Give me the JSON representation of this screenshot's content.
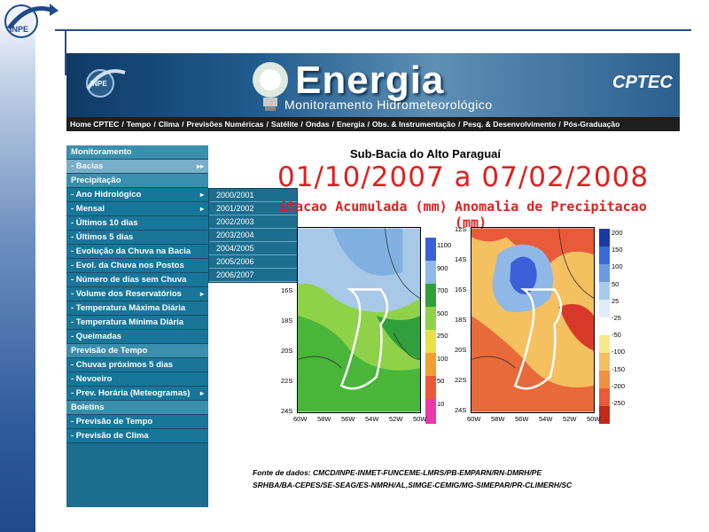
{
  "slide": {
    "logo_text": "INPE"
  },
  "banner": {
    "logo_text": "INPE",
    "title": "Energia",
    "subtitle": "Monitoramento Hidrometeorológico",
    "partner": "CPTEC"
  },
  "topnav": [
    "Home CPTEC",
    "Tempo",
    "Clima",
    "Previsões Numéricas",
    "Satélite",
    "Ondas",
    "Energia",
    "Obs. & Instrumentação",
    "Pesq. & Desenvolvimento",
    "Pós-Graduação"
  ],
  "sidebar": {
    "items": [
      {
        "label": "Monitoramento",
        "kind": "section"
      },
      {
        "label": "- Bacias",
        "kind": "active",
        "arrow": "▸▸"
      },
      {
        "label": "Precipitação",
        "kind": "section"
      },
      {
        "label": "- Ano Hidrológico",
        "kind": "sub",
        "arrow": "▸"
      },
      {
        "label": "- Mensal",
        "kind": "sub",
        "arrow": "▸"
      },
      {
        "label": "- Últimos 10 dias",
        "kind": "sub"
      },
      {
        "label": "- Últimos 5 dias",
        "kind": "sub"
      },
      {
        "label": "- Evolução da Chuva na Bacia",
        "kind": "sub"
      },
      {
        "label": "- Evol. da Chuva nos Postos",
        "kind": "sub"
      },
      {
        "label": "- Número de dias sem Chuva",
        "kind": "sub"
      },
      {
        "label": "- Volume dos Reservatórios",
        "kind": "sub",
        "arrow": "▸"
      },
      {
        "label": "- Temperatura Máxima Diária",
        "kind": "sub"
      },
      {
        "label": "- Temperatura Mínima Diária",
        "kind": "sub"
      },
      {
        "label": "- Queimadas",
        "kind": "sub"
      },
      {
        "label": "Previsão de Tempo",
        "kind": "section"
      },
      {
        "label": "- Chuvas próximos 5 dias",
        "kind": "sub"
      },
      {
        "label": "- Nevoeiro",
        "kind": "sub"
      },
      {
        "label": "- Prev. Horária (Meteogramas)",
        "kind": "sub",
        "arrow": "▸"
      },
      {
        "label": "Boletins",
        "kind": "section"
      },
      {
        "label": "- Previsão de Tempo",
        "kind": "sub"
      },
      {
        "label": "- Previsão de Clima",
        "kind": "sub"
      }
    ]
  },
  "flyout": [
    "2000/2001",
    "2001/2002",
    "2002/2003",
    "2003/2004",
    "2004/2005",
    "2005/2006",
    "2006/2007"
  ],
  "content": {
    "basin_title": "Sub-Bacia do Alto Paraguaí",
    "date_range": "01/10/2007 a 07/02/2008",
    "left_map_title": "itacao Acumulada (mm)",
    "right_map_title": "Anomalia de Precipitacao (mm)",
    "left_lat_labels": [
      "16S",
      "18S",
      "20S",
      "22S",
      "24S"
    ],
    "right_lat_labels": [
      "12S",
      "14S",
      "16S",
      "18S",
      "20S",
      "22S",
      "24S"
    ],
    "lon_labels": [
      "60W",
      "58W",
      "56W",
      "54W",
      "52W",
      "50W"
    ],
    "left_colorbar": [
      "1100",
      "900",
      "700",
      "500",
      "250",
      "100",
      "50",
      "10"
    ],
    "right_colorbar": [
      "200",
      "150",
      "100",
      "50",
      "25",
      "-25",
      "-50",
      "-100",
      "-150",
      "-200",
      "-250"
    ],
    "source_line1": "Fonte de dados: CMCD/INPE-INMET-FUNCEME-LMRS/PB-EMPARN/RN-DMRH/PE",
    "source_line2": "SRHBA/BA-CEPES/SE-SEAG/ES-NMRH/AL,SIMGE-CEMIG/MG-SIMEPAR/PR-CLIMERH/SC"
  },
  "colors": {
    "slide_accent": "#2a4d8a",
    "sidebar_bg": "#1c6e8e",
    "date_red": "#e02020"
  }
}
